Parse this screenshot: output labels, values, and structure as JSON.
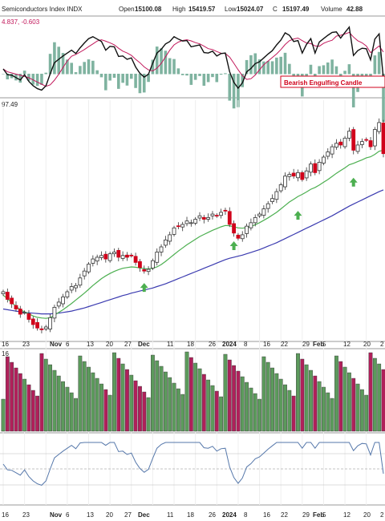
{
  "header": {
    "title": "Semiconductors Index INDX",
    "open_label": "Open",
    "open": "15100.08",
    "high_label": "High",
    "high": "15419.57",
    "low_label": "Low",
    "low": "15024.07",
    "close_label": "C",
    "close": "15197.49",
    "volume_label": "Volume",
    "volume": "42.88"
  },
  "macd": {
    "values_label": "4.837, -0.603"
  },
  "annotation": {
    "text": "Bearish Engulfing Candle"
  },
  "price_label": "97.49",
  "volume_label": "16",
  "x_labels": [
    "16",
    "23",
    "Nov",
    "6",
    "13",
    "20",
    "27",
    "Dec",
    "11",
    "18",
    "26",
    "2024",
    "8",
    "16",
    "22",
    "29",
    "Feb",
    "5",
    "12",
    "20",
    "2"
  ],
  "colors": {
    "up": "#2e8b2e",
    "down": "#d0021b",
    "ma_short": "#4caf50",
    "ma_long": "#3b3bb0",
    "vol_up": "#5c9a5c",
    "vol_down": "#b0205a",
    "macd_line": "#111111",
    "signal_line": "#c2185b",
    "hist": "#7fb3a0",
    "arrow": "#4caf50",
    "rsi": "#5577aa"
  },
  "chart_data": {
    "type": "candlestick",
    "title": "Semiconductors Index INDX",
    "x": [
      "Oct 16",
      "Oct 17",
      "Oct 18",
      "Oct 19",
      "Oct 20",
      "Oct 23",
      "Oct 24",
      "Oct 25",
      "Oct 26",
      "Oct 27",
      "Oct 30",
      "Oct 31",
      "Nov 1",
      "Nov 2",
      "Nov 3",
      "Nov 6",
      "Nov 7",
      "Nov 8",
      "Nov 9",
      "Nov 10",
      "Nov 13",
      "Nov 14",
      "Nov 15",
      "Nov 16",
      "Nov 17",
      "Nov 20",
      "Nov 21",
      "Nov 22",
      "Nov 24",
      "Nov 27",
      "Nov 28",
      "Nov 29",
      "Nov 30",
      "Dec 1",
      "Dec 4",
      "Dec 5",
      "Dec 6",
      "Dec 7",
      "Dec 8",
      "Dec 11",
      "Dec 12",
      "Dec 13",
      "Dec 14",
      "Dec 15",
      "Dec 18",
      "Dec 19",
      "Dec 20",
      "Dec 21",
      "Dec 22",
      "Dec 26",
      "Dec 27",
      "Dec 28",
      "Dec 29",
      "Jan 2",
      "Jan 3",
      "Jan 4",
      "Jan 5",
      "Jan 8",
      "Jan 9",
      "Jan 10",
      "Jan 11",
      "Jan 12",
      "Jan 16",
      "Jan 17",
      "Jan 18",
      "Jan 19",
      "Jan 22",
      "Jan 23",
      "Jan 24",
      "Jan 25",
      "Jan 26",
      "Jan 29",
      "Jan 30",
      "Jan 31",
      "Feb 1",
      "Feb 2",
      "Feb 5",
      "Feb 6",
      "Feb 7",
      "Feb 8",
      "Feb 9",
      "Feb 12",
      "Feb 13",
      "Feb 14",
      "Feb 15",
      "Feb 16",
      "Feb 20",
      "Feb 21",
      "Feb 22",
      "Feb 23"
    ],
    "close": [
      11200,
      10980,
      10850,
      10700,
      10550,
      10600,
      10400,
      10250,
      10150,
      10100,
      10180,
      10450,
      10750,
      10900,
      11050,
      11200,
      11350,
      11380,
      11600,
      11800,
      12000,
      12150,
      12200,
      12250,
      12150,
      12300,
      12350,
      12200,
      12250,
      12200,
      12250,
      12050,
      11900,
      11800,
      11850,
      12100,
      12350,
      12500,
      12700,
      12850,
      13050,
      13100,
      13150,
      13250,
      13200,
      13300,
      13400,
      13300,
      13350,
      13450,
      13400,
      13500,
      13550,
      13150,
      12900,
      12750,
      12850,
      13100,
      13200,
      13350,
      13450,
      13600,
      13750,
      13900,
      14100,
      14300,
      14550,
      14600,
      14550,
      14650,
      14450,
      14700,
      14900,
      14650,
      14950,
      15100,
      15250,
      15400,
      15500,
      15450,
      15650,
      15850,
      15300,
      15450,
      15550,
      15600,
      15400,
      15900,
      16100,
      15200
    ],
    "ma_short": [
      11100,
      11000,
      10880,
      10780,
      10680,
      10620,
      10560,
      10500,
      10460,
      10440,
      10430,
      10450,
      10520,
      10600,
      10680,
      10770,
      10860,
      10960,
      11060,
      11160,
      11270,
      11380,
      11480,
      11580,
      11660,
      11730,
      11790,
      11840,
      11880,
      11900,
      11920,
      11910,
      11890,
      11870,
      11860,
      11880,
      11920,
      11990,
      12080,
      12180,
      12280,
      12380,
      12470,
      12560,
      12640,
      12720,
      12800,
      12860,
      12920,
      12980,
      13030,
      13080,
      13120,
      13110,
      13080,
      13050,
      13040,
      13060,
      13090,
      13140,
      13200,
      13270,
      13340,
      13420,
      13500,
      13600,
      13700,
      13800,
      13880,
      13960,
      14020,
      14090,
      14170,
      14220,
      14290,
      14370,
      14450,
      14540,
      14630,
      14710,
      14790,
      14880,
      14920,
      14970,
      15020,
      15080,
      15110,
      15180,
      15270,
      15300
    ],
    "ma_long": [
      10700,
      10680,
      10660,
      10640,
      10620,
      10600,
      10590,
      10580,
      10570,
      10560,
      10560,
      10560,
      10570,
      10580,
      10600,
      10620,
      10640,
      10670,
      10700,
      10730,
      10770,
      10810,
      10850,
      10890,
      10930,
      10970,
      11010,
      11050,
      11090,
      11120,
      11160,
      11190,
      11220,
      11250,
      11280,
      11310,
      11350,
      11390,
      11430,
      11480,
      11530,
      11580,
      11630,
      11680,
      11730,
      11780,
      11830,
      11880,
      11930,
      11980,
      12030,
      12080,
      12130,
      12170,
      12200,
      12230,
      12260,
      12300,
      12340,
      12380,
      12420,
      12470,
      12520,
      12570,
      12620,
      12680,
      12740,
      12800,
      12860,
      12920,
      12980,
      13040,
      13100,
      13160,
      13220,
      13280,
      13340,
      13400,
      13470,
      13540,
      13610,
      13680,
      13740,
      13800,
      13860,
      13920,
      13980,
      14040,
      14100,
      14150
    ],
    "volume_note": "Volume panel shown as bars colored by up/down day",
    "ylim": [
      9900,
      16400
    ]
  }
}
